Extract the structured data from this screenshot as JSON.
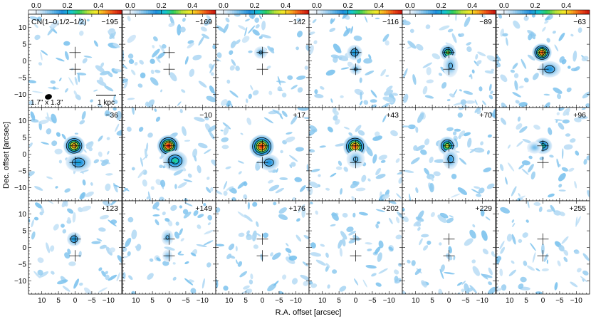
{
  "figure": {
    "line_label": "CN(1–0,1/2–1/2)",
    "beam_label": "1.7\" x 1.3\"",
    "scalebar_label": "1 kpc",
    "xlabel": "R.A. offset [arcsec]",
    "ylabel": "Dec. offset [arcsec]"
  },
  "colorbar": {
    "tick_labels": [
      "0.0",
      "0.2",
      "0.4"
    ],
    "tick_values": [
      0.0,
      0.2,
      0.4
    ],
    "range": [
      -0.05,
      0.55
    ],
    "colors": [
      "#ffffff",
      "#e8f2fb",
      "#a7d4f2",
      "#5fb6ea",
      "#1f8fde",
      "#14c7d4",
      "#2fcf5a",
      "#b6e23a",
      "#f8ec28",
      "#f9a21e",
      "#ee4a16",
      "#c5120e"
    ]
  },
  "axes": {
    "x_ticks": [
      10,
      5,
      0,
      -5,
      -10
    ],
    "x_tick_labels": [
      "10",
      "5",
      "0",
      "−5",
      "−10"
    ],
    "y_ticks": [
      10,
      5,
      0,
      -5,
      -10
    ],
    "y_tick_labels": [
      "10",
      "5",
      "0",
      "−5",
      "−10"
    ],
    "xlim": [
      14,
      -14
    ],
    "ylim": [
      -14,
      14
    ]
  },
  "chart_data": {
    "type": "heatmap",
    "panel_labels": [
      "−195",
      "−169",
      "−142",
      "−116",
      "−89",
      "−63",
      "−36",
      "−10",
      "+17",
      "+43",
      "+70",
      "+96",
      "+123",
      "+149",
      "+176",
      "+202",
      "+229",
      "+255"
    ],
    "crosses": [
      [
        0,
        2.5
      ],
      [
        0,
        -2.5
      ]
    ],
    "components": [
      [],
      [],
      [
        {
          "x": 0.5,
          "y": 2.5,
          "peak": 0.12,
          "sx": 1.3,
          "sy": 1.2
        }
      ],
      [
        {
          "x": 0.3,
          "y": 2.5,
          "peak": 0.2,
          "sx": 1.5,
          "sy": 1.5
        },
        {
          "x": 0,
          "y": -2.5,
          "peak": 0.12,
          "sx": 1.2,
          "sy": 1.1
        }
      ],
      [
        {
          "x": 0.3,
          "y": 2.5,
          "peak": 0.33,
          "sx": 1.6,
          "sy": 1.6
        },
        {
          "x": -0.5,
          "y": -1.5,
          "peak": 0.12,
          "sx": 1.5,
          "sy": 2.2
        }
      ],
      [
        {
          "x": 0.3,
          "y": 2.5,
          "peak": 0.5,
          "sx": 1.9,
          "sy": 1.8
        },
        {
          "x": -2,
          "y": -2.5,
          "peak": 0.18,
          "sx": 2.2,
          "sy": 1.6
        }
      ],
      [
        {
          "x": 0.3,
          "y": 2.5,
          "peak": 0.46,
          "sx": 2.1,
          "sy": 2.0
        },
        {
          "x": -1,
          "y": -2.5,
          "peak": 0.2,
          "sx": 2.5,
          "sy": 1.8
        }
      ],
      [
        {
          "x": 0.2,
          "y": 2.5,
          "peak": 0.55,
          "sx": 2.2,
          "sy": 2.1
        },
        {
          "x": -1.8,
          "y": -2,
          "peak": 0.26,
          "sx": 2.4,
          "sy": 2.0
        }
      ],
      [
        {
          "x": 0.2,
          "y": 2.3,
          "peak": 0.53,
          "sx": 2.4,
          "sy": 2.3
        },
        {
          "x": -2,
          "y": -2.5,
          "peak": 0.18,
          "sx": 2.0,
          "sy": 1.6
        }
      ],
      [
        {
          "x": 0.2,
          "y": 2.3,
          "peak": 0.5,
          "sx": 2.3,
          "sy": 2.2
        },
        {
          "x": 0,
          "y": -1.5,
          "peak": 0.12,
          "sx": 1.8,
          "sy": 1.8
        }
      ],
      [
        {
          "x": 0.5,
          "y": 2.5,
          "peak": 0.36,
          "sx": 1.8,
          "sy": 1.8
        },
        {
          "x": -0.5,
          "y": -1.5,
          "peak": 0.15,
          "sx": 1.5,
          "sy": 2.0
        }
      ],
      [
        {
          "x": 0,
          "y": 2.5,
          "peak": 0.25,
          "sx": 1.8,
          "sy": 1.6
        },
        {
          "x": 2.5,
          "y": 2.0,
          "peak": 0.1,
          "sx": 1.5,
          "sy": 1.2
        }
      ],
      [
        {
          "x": 0.3,
          "y": 2.5,
          "peak": 0.2,
          "sx": 1.4,
          "sy": 1.4
        }
      ],
      [
        {
          "x": 0.5,
          "y": 3,
          "peak": 0.12,
          "sx": 1.2,
          "sy": 1.5
        },
        {
          "x": 0.5,
          "y": -2.5,
          "peak": 0.08,
          "sx": 1.0,
          "sy": 1.2
        }
      ],
      [],
      [],
      [],
      []
    ]
  }
}
